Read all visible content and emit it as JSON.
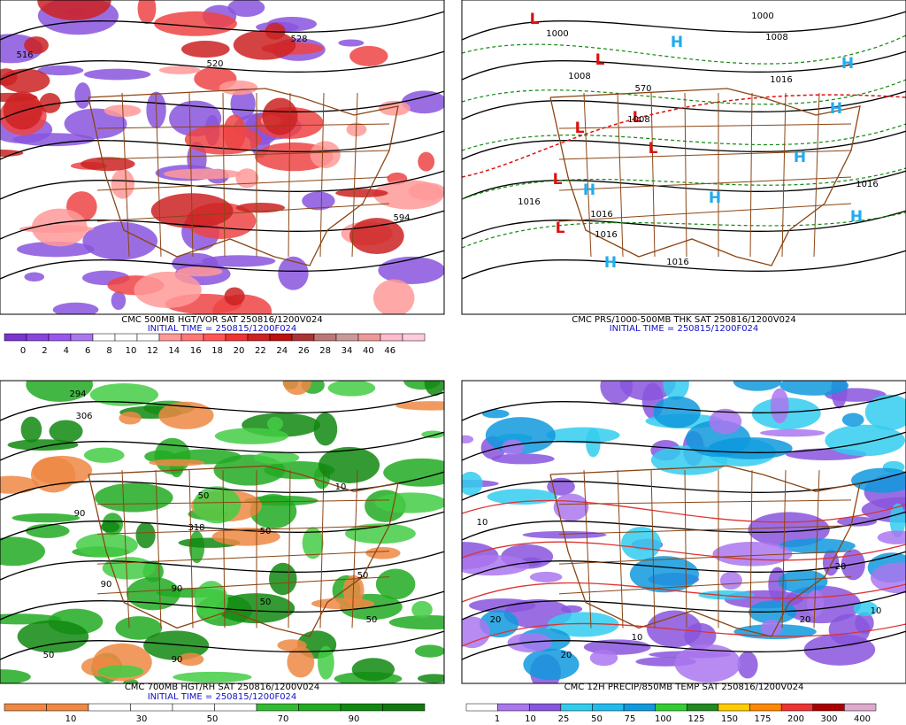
{
  "panels": [
    {
      "caption": "CMC 500MB HGT/VOR SAT 250816/1200V024",
      "initial_time": "INITIAL TIME = 250815/1200F024",
      "colorbar_labels": [
        0,
        2,
        4,
        6,
        8,
        10,
        12,
        14,
        16,
        18,
        20,
        22,
        24,
        26,
        28,
        34,
        40,
        46
      ],
      "map_labels": [
        "516",
        "528",
        "520",
        "594"
      ]
    },
    {
      "caption": "CMC PRS/1000-500MB THK SAT 250816/1200V024",
      "initial_time": "INITIAL TIME = 250815/1200F024",
      "colorbar_labels": [],
      "map_labels": [
        "L",
        "L",
        "L",
        "L",
        "L",
        "L",
        "L",
        "H",
        "H",
        "H",
        "H",
        "H",
        "H",
        "H",
        "H",
        "1000",
        "1000",
        "1008",
        "1008",
        "1016",
        "1016",
        "1016",
        "1016",
        "1016",
        "1016",
        "1008",
        "570"
      ]
    },
    {
      "caption": "CMC 700MB HGT/RH SAT 250816/1200V024",
      "initial_time": "INITIAL TIME = 250815/1200F024",
      "colorbar_labels": [
        10,
        30,
        50,
        70,
        90
      ],
      "map_labels": [
        "294",
        "306",
        "318",
        "90",
        "90",
        "50",
        "50",
        "90",
        "50",
        "10",
        "50",
        "50",
        "90",
        "50"
      ]
    },
    {
      "caption": "CMC 12H PRECIP/850MB TEMP SAT 250816/1200V024",
      "initial_time": "",
      "colorbar_labels": [
        1,
        10,
        25,
        50,
        75,
        100,
        125,
        150,
        175,
        200,
        300,
        400
      ],
      "map_labels": [
        "10",
        "20",
        "20",
        "10",
        "20",
        "20",
        "10"
      ]
    }
  ]
}
